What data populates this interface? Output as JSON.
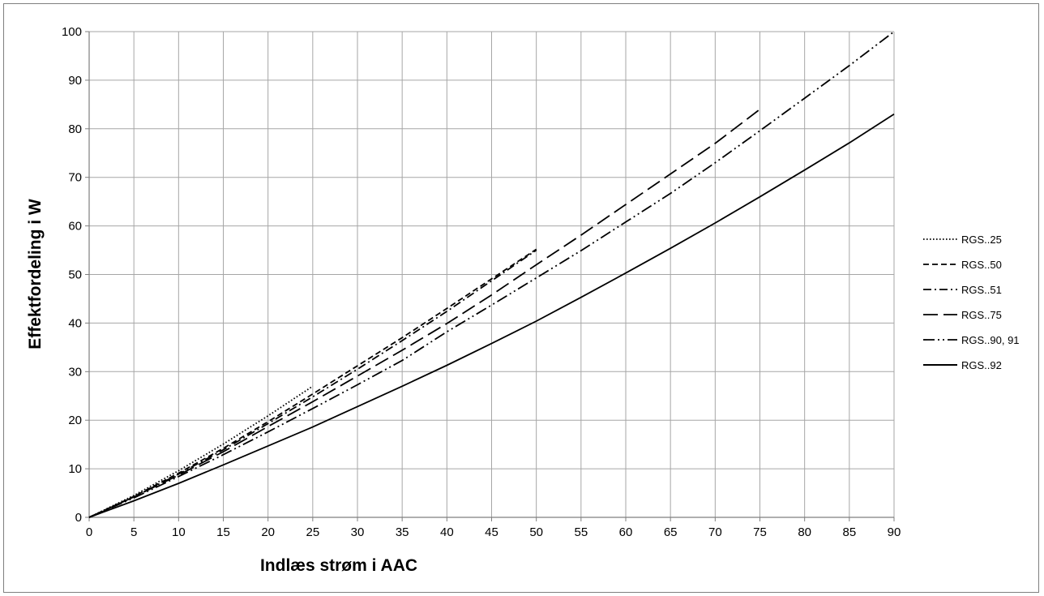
{
  "chart_data": {
    "type": "line",
    "xlabel": "Indlæs strøm i AAC",
    "ylabel": "Effektfordeling i W",
    "xlim": [
      0,
      90
    ],
    "ylim": [
      0,
      100
    ],
    "x_ticks": [
      0,
      5,
      10,
      15,
      20,
      25,
      30,
      35,
      40,
      45,
      50,
      55,
      60,
      65,
      70,
      75,
      80,
      85,
      90
    ],
    "y_ticks": [
      0,
      10,
      20,
      30,
      40,
      50,
      60,
      70,
      80,
      90,
      100
    ],
    "grid": true,
    "legend_position": "right",
    "series": [
      {
        "name": "RGS..25",
        "dash": "dotted",
        "x": [
          0,
          5,
          10,
          15,
          20,
          25
        ],
        "y": [
          0,
          4.5,
          9.6,
          15.1,
          20.9,
          27.0
        ]
      },
      {
        "name": "RGS..50",
        "dash": "dash",
        "x": [
          0,
          5,
          10,
          15,
          20,
          25,
          30,
          35,
          40,
          45,
          50
        ],
        "y": [
          0,
          4.3,
          9.1,
          14.2,
          19.7,
          25.4,
          31.2,
          37.0,
          43.0,
          49.1,
          55.2
        ]
      },
      {
        "name": "RGS..51",
        "dash": "dash-dot",
        "x": [
          0,
          5,
          10,
          15,
          20,
          25,
          30,
          35,
          40,
          45,
          50
        ],
        "y": [
          0,
          4.2,
          8.9,
          13.9,
          19.3,
          24.8,
          30.5,
          36.4,
          42.4,
          48.7,
          55.0
        ]
      },
      {
        "name": "RGS..75",
        "dash": "long-dash",
        "x": [
          0,
          5,
          10,
          15,
          20,
          25,
          30,
          35,
          40,
          45,
          50,
          55,
          60,
          65,
          70,
          75
        ],
        "y": [
          0,
          4.2,
          8.7,
          13.5,
          18.7,
          23.8,
          29.1,
          34.4,
          39.9,
          45.8,
          52.0,
          58.1,
          64.4,
          70.7,
          77.0,
          84.0
        ]
      },
      {
        "name": "RGS..90, 91",
        "dash": "dash-dot-dot",
        "x": [
          0,
          5,
          10,
          15,
          20,
          25,
          30,
          35,
          40,
          45,
          50,
          55,
          60,
          65,
          70,
          75,
          80,
          85,
          90
        ],
        "y": [
          0,
          4.0,
          8.4,
          12.9,
          17.6,
          22.4,
          27.3,
          32.3,
          38.2,
          43.7,
          49.3,
          54.9,
          60.8,
          66.7,
          73.0,
          79.6,
          86.3,
          93.0,
          100.0
        ]
      },
      {
        "name": "RGS..92",
        "dash": "solid",
        "x": [
          0,
          5,
          10,
          15,
          20,
          25,
          30,
          35,
          40,
          45,
          50,
          55,
          60,
          65,
          70,
          75,
          80,
          85,
          90
        ],
        "y": [
          0,
          3.4,
          7.0,
          10.8,
          14.7,
          18.6,
          22.8,
          27.0,
          31.3,
          35.8,
          40.4,
          45.3,
          50.3,
          55.4,
          60.6,
          66.0,
          71.5,
          77.1,
          83.0
        ]
      }
    ]
  }
}
